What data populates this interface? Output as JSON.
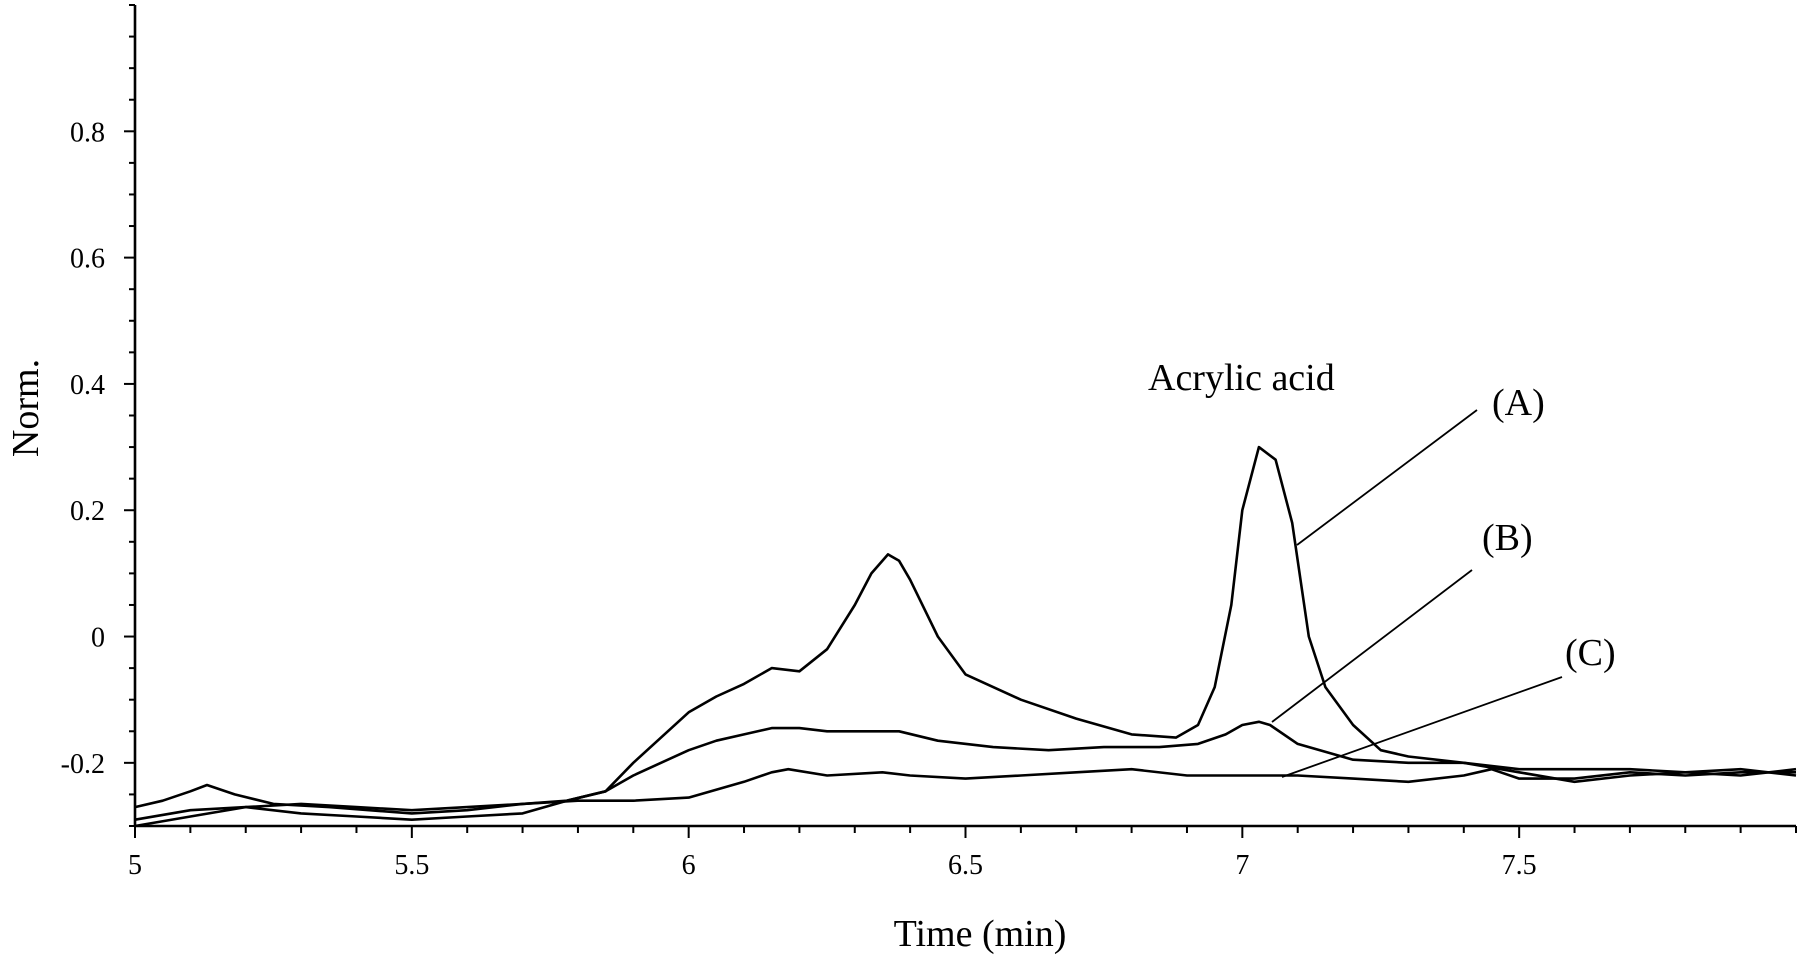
{
  "chart_data": {
    "type": "line",
    "xlabel": "Time (min)",
    "ylabel": "Norm.",
    "xlim": [
      5,
      8.0
    ],
    "ylim": [
      -0.3,
      1.0
    ],
    "x_ticks": [
      5,
      5.5,
      6,
      6.5,
      7,
      7.5
    ],
    "x_tick_labels": [
      "5",
      "5.5",
      "6",
      "6.5",
      "7",
      "7.5"
    ],
    "y_ticks": [
      -0.2,
      0,
      0.2,
      0.4,
      0.6,
      0.8
    ],
    "y_tick_labels": [
      "-0.2",
      "0",
      "0.2",
      "0.4",
      "0.6",
      "0.8"
    ],
    "grid": false,
    "series": [
      {
        "name": "(A)",
        "x": [
          5.0,
          5.05,
          5.1,
          5.13,
          5.18,
          5.25,
          5.35,
          5.5,
          5.6,
          5.7,
          5.78,
          5.85,
          5.9,
          5.95,
          6.0,
          6.05,
          6.1,
          6.15,
          6.2,
          6.25,
          6.3,
          6.33,
          6.36,
          6.38,
          6.4,
          6.45,
          6.5,
          6.6,
          6.7,
          6.8,
          6.88,
          6.92,
          6.95,
          6.98,
          7.0,
          7.03,
          7.06,
          7.09,
          7.12,
          7.15,
          7.2,
          7.25,
          7.3,
          7.4,
          7.5,
          7.6,
          7.7,
          7.8,
          7.9,
          8.0
        ],
        "y": [
          -0.27,
          -0.26,
          -0.245,
          -0.235,
          -0.25,
          -0.265,
          -0.27,
          -0.28,
          -0.275,
          -0.265,
          -0.26,
          -0.245,
          -0.2,
          -0.16,
          -0.12,
          -0.095,
          -0.075,
          -0.05,
          -0.055,
          -0.02,
          0.05,
          0.1,
          0.13,
          0.12,
          0.09,
          0.0,
          -0.06,
          -0.1,
          -0.13,
          -0.155,
          -0.16,
          -0.14,
          -0.08,
          0.05,
          0.2,
          0.3,
          0.28,
          0.18,
          0.0,
          -0.08,
          -0.14,
          -0.18,
          -0.19,
          -0.2,
          -0.21,
          -0.21,
          -0.21,
          -0.215,
          -0.22,
          -0.21
        ]
      },
      {
        "name": "(B)",
        "x": [
          5.0,
          5.1,
          5.2,
          5.3,
          5.4,
          5.5,
          5.6,
          5.7,
          5.78,
          5.85,
          5.9,
          5.95,
          6.0,
          6.05,
          6.1,
          6.15,
          6.2,
          6.25,
          6.3,
          6.38,
          6.45,
          6.55,
          6.65,
          6.75,
          6.85,
          6.92,
          6.97,
          7.0,
          7.03,
          7.05,
          7.1,
          7.2,
          7.3,
          7.4,
          7.5,
          7.6,
          7.7,
          7.8,
          7.9,
          8.0
        ],
        "y": [
          -0.29,
          -0.275,
          -0.27,
          -0.28,
          -0.285,
          -0.29,
          -0.285,
          -0.28,
          -0.26,
          -0.245,
          -0.22,
          -0.2,
          -0.18,
          -0.165,
          -0.155,
          -0.145,
          -0.145,
          -0.15,
          -0.15,
          -0.15,
          -0.165,
          -0.175,
          -0.18,
          -0.175,
          -0.175,
          -0.17,
          -0.155,
          -0.14,
          -0.135,
          -0.14,
          -0.17,
          -0.195,
          -0.2,
          -0.2,
          -0.215,
          -0.23,
          -0.22,
          -0.215,
          -0.21,
          -0.22
        ]
      },
      {
        "name": "(C)",
        "x": [
          5.0,
          5.1,
          5.2,
          5.3,
          5.4,
          5.5,
          5.6,
          5.7,
          5.8,
          5.9,
          6.0,
          6.1,
          6.15,
          6.18,
          6.25,
          6.35,
          6.4,
          6.5,
          6.6,
          6.7,
          6.8,
          6.9,
          7.0,
          7.1,
          7.2,
          7.3,
          7.4,
          7.45,
          7.5,
          7.6,
          7.7,
          7.8,
          7.9,
          8.0
        ],
        "y": [
          -0.3,
          -0.285,
          -0.27,
          -0.265,
          -0.27,
          -0.275,
          -0.27,
          -0.265,
          -0.26,
          -0.26,
          -0.255,
          -0.23,
          -0.215,
          -0.21,
          -0.22,
          -0.215,
          -0.22,
          -0.225,
          -0.22,
          -0.215,
          -0.21,
          -0.22,
          -0.22,
          -0.22,
          -0.225,
          -0.23,
          -0.22,
          -0.21,
          -0.225,
          -0.225,
          -0.215,
          -0.22,
          -0.215,
          -0.215
        ]
      }
    ],
    "annotations": [
      {
        "text": "Acrylic acid"
      },
      {
        "text": "(A)"
      },
      {
        "text": "(B)"
      },
      {
        "text": "(C)"
      }
    ]
  }
}
